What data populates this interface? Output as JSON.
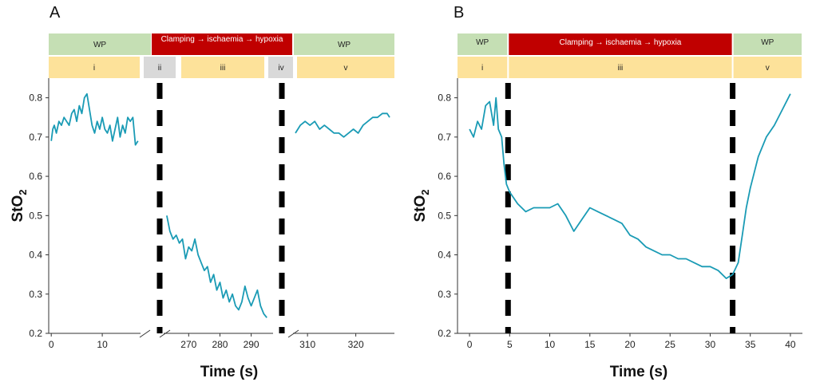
{
  "colors": {
    "line": "#1a9bb5",
    "wp_fill": "#c5dfb4",
    "clamp_fill": "#c00000",
    "phase_fill": "#fde29a",
    "gap_fill": "#d9d9d9",
    "dash": "#000000"
  },
  "chart_data": [
    {
      "panel": "A",
      "type": "line",
      "ylabel": "StO",
      "ylabel_sub": "2",
      "xlabel": "Time (s)",
      "ylim": [
        0.2,
        0.85
      ],
      "yticks": [
        "0.2",
        "0.3",
        "0.4",
        "0.5",
        "0.6",
        "0.7",
        "0.8"
      ],
      "grid": false,
      "axis_break": true,
      "segments": [
        {
          "xlim": [
            -0.5,
            17.5
          ],
          "xticks": [
            0,
            10
          ],
          "x": [
            0,
            0.3,
            0.6,
            1,
            1.5,
            2,
            2.5,
            3,
            3.5,
            4,
            4.5,
            5,
            5.5,
            6,
            6.5,
            7,
            7.5,
            8,
            8.5,
            9,
            9.5,
            10,
            10.5,
            11,
            11.5,
            12,
            12.5,
            13,
            13.5,
            14,
            14.5,
            15,
            15.5,
            16,
            16.5,
            17
          ],
          "values": [
            0.69,
            0.72,
            0.73,
            0.71,
            0.74,
            0.73,
            0.75,
            0.74,
            0.73,
            0.76,
            0.77,
            0.74,
            0.78,
            0.76,
            0.8,
            0.81,
            0.77,
            0.73,
            0.71,
            0.74,
            0.72,
            0.75,
            0.72,
            0.71,
            0.73,
            0.69,
            0.72,
            0.75,
            0.7,
            0.73,
            0.71,
            0.75,
            0.74,
            0.75,
            0.68,
            0.69
          ]
        },
        {
          "xlim": [
            262,
            297
          ],
          "xticks": [
            270,
            280,
            290
          ],
          "x": [
            263,
            264,
            265,
            266,
            267,
            268,
            269,
            270,
            271,
            272,
            273,
            274,
            275,
            276,
            277,
            278,
            279,
            280,
            281,
            282,
            283,
            284,
            285,
            286,
            287,
            288,
            289,
            290,
            291,
            292,
            293,
            294,
            295
          ],
          "values": [
            0.5,
            0.46,
            0.44,
            0.45,
            0.43,
            0.44,
            0.39,
            0.42,
            0.41,
            0.44,
            0.4,
            0.38,
            0.36,
            0.37,
            0.33,
            0.35,
            0.31,
            0.33,
            0.29,
            0.31,
            0.28,
            0.3,
            0.27,
            0.26,
            0.28,
            0.32,
            0.29,
            0.27,
            0.29,
            0.31,
            0.27,
            0.25,
            0.24
          ]
        },
        {
          "xlim": [
            307,
            328
          ],
          "xticks": [
            310,
            320
          ],
          "x": [
            307.5,
            308.5,
            309.5,
            310.5,
            311.5,
            312.5,
            313.5,
            314.5,
            315.5,
            316.5,
            317.5,
            318.5,
            319.5,
            320.5,
            321.5,
            322.5,
            323.5,
            324.5,
            325.5,
            326.5,
            327
          ],
          "values": [
            0.71,
            0.73,
            0.74,
            0.73,
            0.74,
            0.72,
            0.73,
            0.72,
            0.71,
            0.71,
            0.7,
            0.71,
            0.72,
            0.71,
            0.73,
            0.74,
            0.75,
            0.75,
            0.76,
            0.76,
            0.75
          ]
        }
      ],
      "dashed_lines_between_segments": [
        1,
        2
      ],
      "bands": [
        {
          "row": 1,
          "label": "WP",
          "style": "wp",
          "from": "start",
          "to": "dash1"
        },
        {
          "row": 1,
          "label": "Clamping → ischaemia → hypoxia",
          "style": "clamp",
          "from": "dash1",
          "to": "dash2"
        },
        {
          "row": 1,
          "label": "WP",
          "style": "wp",
          "from": "dash2",
          "to": "end"
        },
        {
          "row": 2,
          "label": "i",
          "style": "phase"
        },
        {
          "row": 2,
          "label": "ii",
          "style": "gap"
        },
        {
          "row": 2,
          "label": "iii",
          "style": "phase"
        },
        {
          "row": 2,
          "label": "iv",
          "style": "gap"
        },
        {
          "row": 2,
          "label": "v",
          "style": "phase"
        }
      ]
    },
    {
      "panel": "B",
      "type": "line",
      "ylabel": "StO",
      "ylabel_sub": "2",
      "xlabel": "Time (s)",
      "xlim": [
        -1.5,
        41.5
      ],
      "ylim": [
        0.2,
        0.85
      ],
      "xticks": [
        0,
        5,
        10,
        15,
        20,
        25,
        30,
        35,
        40
      ],
      "yticks": [
        "0.2",
        "0.3",
        "0.4",
        "0.5",
        "0.6",
        "0.7",
        "0.8"
      ],
      "grid": false,
      "dashed_lines_x": [
        4.8,
        32.8
      ],
      "x": [
        0,
        0.5,
        1,
        1.5,
        2,
        2.5,
        3,
        3.3,
        3.6,
        4,
        4.3,
        4.6,
        5,
        6,
        7,
        8,
        9,
        10,
        11,
        12,
        13,
        14,
        15,
        16,
        17,
        18,
        19,
        20,
        21,
        22,
        23,
        24,
        25,
        26,
        27,
        28,
        29,
        30,
        31,
        32,
        32.8,
        33.5,
        34,
        34.5,
        35,
        35.5,
        36,
        37,
        38,
        39,
        40
      ],
      "values": [
        0.72,
        0.7,
        0.74,
        0.72,
        0.78,
        0.79,
        0.73,
        0.8,
        0.72,
        0.7,
        0.63,
        0.58,
        0.56,
        0.53,
        0.51,
        0.52,
        0.52,
        0.52,
        0.53,
        0.5,
        0.46,
        0.49,
        0.52,
        0.51,
        0.5,
        0.49,
        0.48,
        0.45,
        0.44,
        0.42,
        0.41,
        0.4,
        0.4,
        0.39,
        0.39,
        0.38,
        0.37,
        0.37,
        0.36,
        0.34,
        0.35,
        0.38,
        0.45,
        0.52,
        0.57,
        0.61,
        0.65,
        0.7,
        0.73,
        0.77,
        0.81
      ],
      "bands": [
        {
          "row": 1,
          "label": "WP",
          "style": "wp",
          "from": -1.5,
          "to": 4.8
        },
        {
          "row": 1,
          "label": "Clamping → ischaemia → hypoxia",
          "style": "clamp",
          "from": 4.8,
          "to": 32.8
        },
        {
          "row": 1,
          "label": "WP",
          "style": "wp",
          "from": 32.8,
          "to": 41.5
        },
        {
          "row": 2,
          "label": "i",
          "style": "phase",
          "from": -1.5,
          "to": 4.8
        },
        {
          "row": 2,
          "label": "iii",
          "style": "phase",
          "from": 4.8,
          "to": 32.8
        },
        {
          "row": 2,
          "label": "v",
          "style": "phase",
          "from": 32.8,
          "to": 41.5
        }
      ]
    }
  ]
}
